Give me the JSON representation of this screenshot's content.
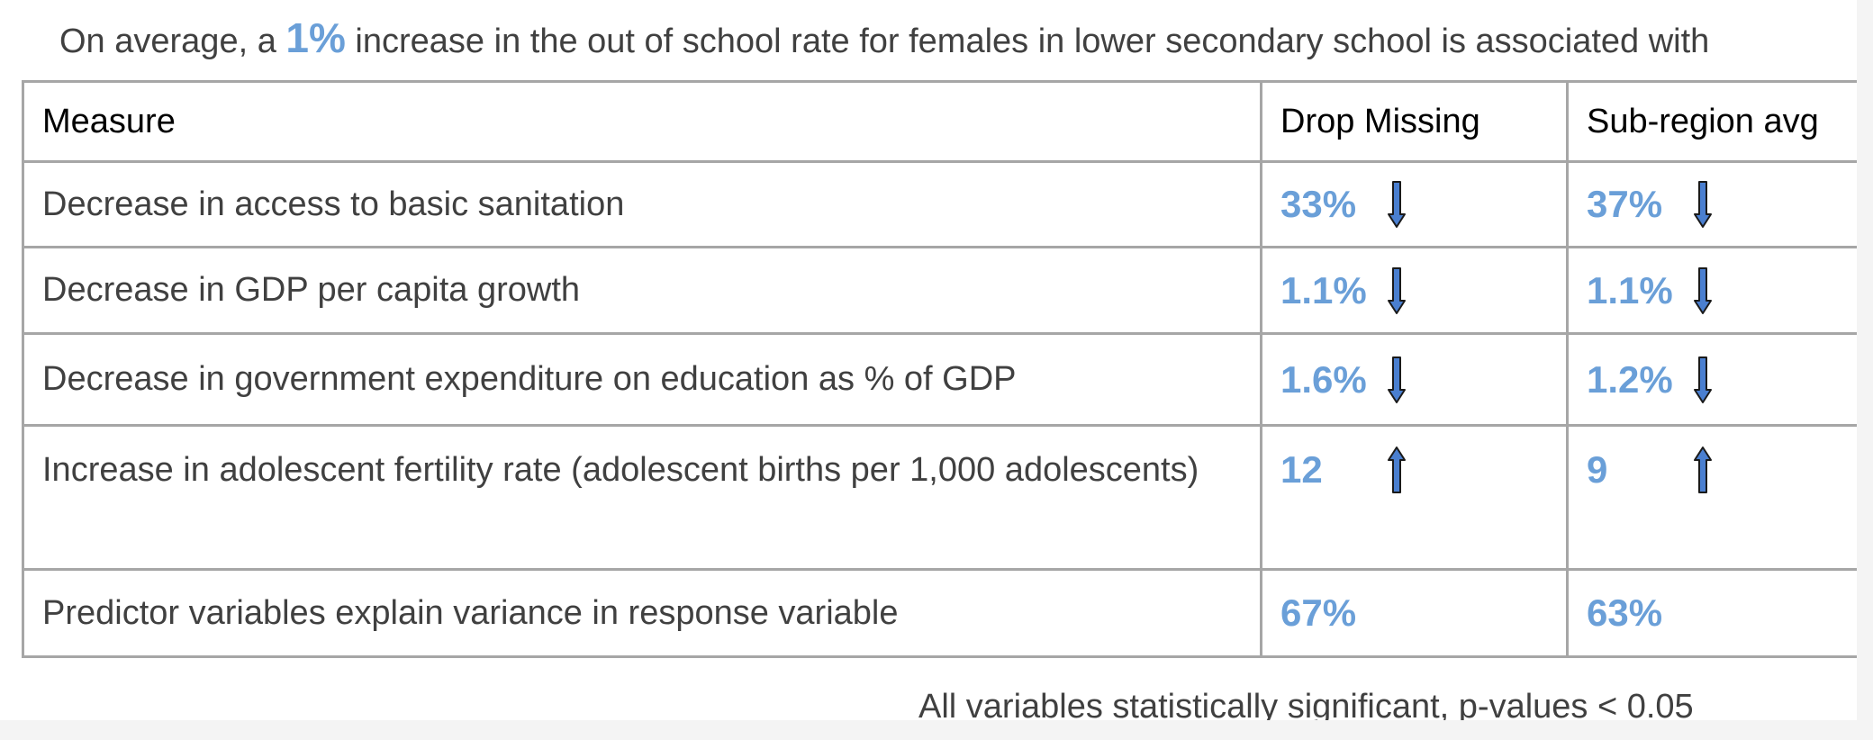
{
  "headline": {
    "before": "On average, a ",
    "highlight": "1%",
    "after": " increase in the out of school rate for females in lower secondary school is associated with"
  },
  "table": {
    "headers": [
      "Measure",
      "Drop Missing",
      "Sub-region avg"
    ],
    "rows": [
      {
        "measure": "Decrease in access to basic sanitation",
        "drop_missing": "33%",
        "subregion_avg": "37%",
        "direction": "down-arrow-icon"
      },
      {
        "measure": "Decrease in GDP per capita growth",
        "drop_missing": "1.1%",
        "subregion_avg": "1.1%",
        "direction": "down-arrow-icon"
      },
      {
        "measure": "Decrease in government expenditure on education as % of GDP",
        "drop_missing": "1.6%",
        "subregion_avg": "1.2%",
        "direction": "down-arrow-icon"
      },
      {
        "measure": "Increase in adolescent fertility rate (adolescent births per 1,000 adolescents)",
        "drop_missing": "12",
        "subregion_avg": "9",
        "direction": "up-arrow-icon"
      },
      {
        "measure": "Predictor variables explain variance in response variable",
        "drop_missing": "67%",
        "subregion_avg": "63%",
        "direction": ""
      }
    ]
  },
  "footnote": "All variables statistically significant, p-values < 0.05",
  "colors": {
    "accent": "#6a9fd8",
    "arrow_fill": "#4a7fd0",
    "text": "#404040",
    "border": "#a6a6a6"
  }
}
